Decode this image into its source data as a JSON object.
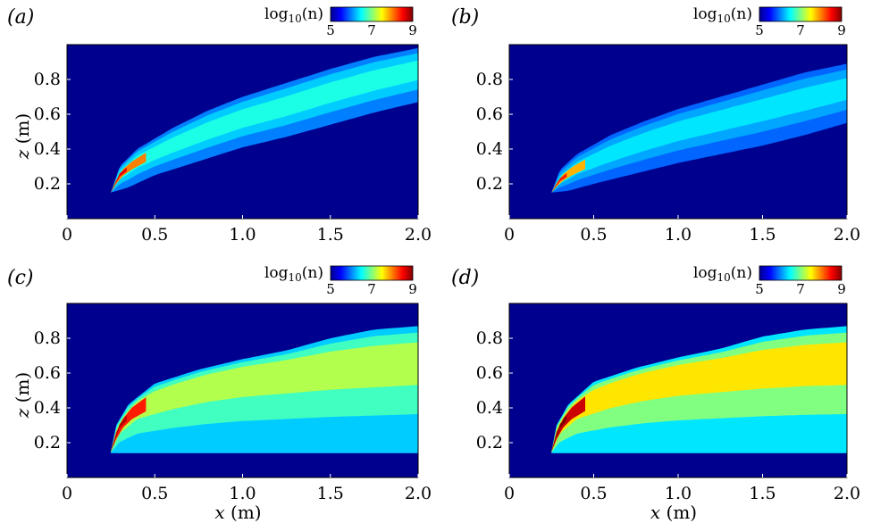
{
  "colors": {
    "background": "#00008f",
    "colormap": [
      "#00008f",
      "#0000ff",
      "#0080ff",
      "#00ffff",
      "#80ff80",
      "#ffff00",
      "#ff8000",
      "#ff0000",
      "#800000"
    ]
  },
  "chart_data": [
    {
      "type": "heatmap",
      "panel_label": "(a)",
      "xlabel": "",
      "ylabel": "z (m)",
      "xlim": [
        0,
        2.0
      ],
      "ylim": [
        0,
        1.0
      ],
      "x_ticks": [
        0,
        0.5,
        1.0,
        1.5,
        2.0
      ],
      "x_tick_labels": [
        "0",
        "0.5",
        "1.0",
        "1.5",
        "2.0"
      ],
      "y_ticks": [
        0.2,
        0.4,
        0.6,
        0.8
      ],
      "y_tick_labels": [
        "0.2",
        "0.4",
        "0.6",
        "0.8"
      ],
      "colorbar": {
        "label": "log10(n)",
        "range": [
          5,
          9
        ],
        "tick_labels": [
          "5",
          "7",
          "9"
        ]
      },
      "plume": {
        "source": [
          0.25,
          0.15
        ],
        "upper_edge": [
          [
            0.25,
            0.15
          ],
          [
            0.3,
            0.3
          ],
          [
            0.4,
            0.4
          ],
          [
            0.6,
            0.52
          ],
          [
            0.8,
            0.62
          ],
          [
            1.0,
            0.7
          ],
          [
            1.25,
            0.78
          ],
          [
            1.5,
            0.86
          ],
          [
            1.75,
            0.93
          ],
          [
            2.0,
            0.98
          ]
        ],
        "core": [
          [
            0.25,
            0.15
          ],
          [
            0.3,
            0.25
          ],
          [
            0.4,
            0.33
          ],
          [
            0.6,
            0.42
          ],
          [
            0.8,
            0.5
          ],
          [
            1.0,
            0.57
          ],
          [
            1.25,
            0.64
          ],
          [
            1.5,
            0.72
          ],
          [
            1.75,
            0.79
          ],
          [
            2.0,
            0.85
          ]
        ],
        "lower_edge": [
          [
            0.25,
            0.15
          ],
          [
            0.35,
            0.18
          ],
          [
            0.5,
            0.25
          ],
          [
            0.75,
            0.33
          ],
          [
            1.0,
            0.41
          ],
          [
            1.25,
            0.47
          ],
          [
            1.5,
            0.54
          ],
          [
            1.75,
            0.61
          ],
          [
            2.0,
            0.67
          ]
        ],
        "peak_log10n": 8.6,
        "body_log10n": 6.6,
        "outer_log10n": 6.0
      }
    },
    {
      "type": "heatmap",
      "panel_label": "(b)",
      "xlabel": "",
      "ylabel": "",
      "xlim": [
        0,
        2.0
      ],
      "ylim": [
        0,
        1.0
      ],
      "x_ticks": [
        0,
        0.5,
        1.0,
        1.5,
        2.0
      ],
      "x_tick_labels": [
        "0",
        "0.5",
        "1.0",
        "1.5",
        "2.0"
      ],
      "y_ticks": [
        0.2,
        0.4,
        0.6,
        0.8
      ],
      "y_tick_labels": [
        "0.2",
        "0.4",
        "0.6",
        "0.8"
      ],
      "colorbar": {
        "label": "log10(n)",
        "range": [
          5,
          9
        ],
        "tick_labels": [
          "5",
          "7",
          "9"
        ]
      },
      "plume": {
        "source": [
          0.25,
          0.15
        ],
        "upper_edge": [
          [
            0.25,
            0.15
          ],
          [
            0.3,
            0.28
          ],
          [
            0.4,
            0.37
          ],
          [
            0.6,
            0.48
          ],
          [
            0.8,
            0.56
          ],
          [
            1.0,
            0.63
          ],
          [
            1.25,
            0.7
          ],
          [
            1.5,
            0.77
          ],
          [
            1.75,
            0.84
          ],
          [
            2.0,
            0.89
          ]
        ],
        "core": [
          [
            0.25,
            0.15
          ],
          [
            0.3,
            0.22
          ],
          [
            0.4,
            0.29
          ],
          [
            0.6,
            0.37
          ],
          [
            0.8,
            0.44
          ],
          [
            1.0,
            0.5
          ],
          [
            1.25,
            0.56
          ],
          [
            1.5,
            0.62
          ],
          [
            1.75,
            0.68
          ],
          [
            2.0,
            0.74
          ]
        ],
        "lower_edge": [
          [
            0.25,
            0.15
          ],
          [
            0.35,
            0.16
          ],
          [
            0.5,
            0.2
          ],
          [
            0.75,
            0.26
          ],
          [
            1.0,
            0.32
          ],
          [
            1.25,
            0.37
          ],
          [
            1.5,
            0.42
          ],
          [
            1.75,
            0.48
          ],
          [
            2.0,
            0.55
          ]
        ],
        "peak_log10n": 8.4,
        "body_log10n": 6.4,
        "outer_log10n": 5.9
      }
    },
    {
      "type": "heatmap",
      "panel_label": "(c)",
      "xlabel": "x (m)",
      "ylabel": "z (m)",
      "xlim": [
        0,
        2.0
      ],
      "ylim": [
        0,
        1.0
      ],
      "x_ticks": [
        0,
        0.5,
        1.0,
        1.5,
        2.0
      ],
      "x_tick_labels": [
        "0",
        "0.5",
        "1.0",
        "1.5",
        "2.0"
      ],
      "y_ticks": [
        0.2,
        0.4,
        0.6,
        0.8
      ],
      "y_tick_labels": [
        "0.2",
        "0.4",
        "0.6",
        "0.8"
      ],
      "colorbar": {
        "label": "log10(n)",
        "range": [
          5,
          9
        ],
        "tick_labels": [
          "5",
          "7",
          "9"
        ]
      },
      "plume": {
        "source": [
          0.25,
          0.15
        ],
        "upper_edge": [
          [
            0.25,
            0.15
          ],
          [
            0.28,
            0.3
          ],
          [
            0.35,
            0.42
          ],
          [
            0.5,
            0.54
          ],
          [
            0.75,
            0.62
          ],
          [
            1.0,
            0.68
          ],
          [
            1.25,
            0.73
          ],
          [
            1.5,
            0.8
          ],
          [
            1.75,
            0.85
          ],
          [
            2.0,
            0.87
          ]
        ],
        "core": [
          [
            0.25,
            0.15
          ],
          [
            0.3,
            0.3
          ],
          [
            0.4,
            0.42
          ],
          [
            0.6,
            0.5
          ],
          [
            0.8,
            0.56
          ],
          [
            1.0,
            0.6
          ],
          [
            1.25,
            0.63
          ],
          [
            1.5,
            0.66
          ],
          [
            1.75,
            0.68
          ],
          [
            2.0,
            0.7
          ]
        ],
        "lower_edge": [
          [
            0.25,
            0.14
          ],
          [
            0.5,
            0.14
          ],
          [
            1.0,
            0.14
          ],
          [
            1.5,
            0.14
          ],
          [
            2.0,
            0.14
          ]
        ],
        "peak_log10n": 8.8,
        "body_log10n": 7.2,
        "outer_log10n": 6.3
      }
    },
    {
      "type": "heatmap",
      "panel_label": "(d)",
      "xlabel": "x (m)",
      "ylabel": "",
      "xlim": [
        0,
        2.0
      ],
      "ylim": [
        0,
        1.0
      ],
      "x_ticks": [
        0,
        0.5,
        1.0,
        1.5,
        2.0
      ],
      "x_tick_labels": [
        "0",
        "0.5",
        "1.0",
        "1.5",
        "2.0"
      ],
      "y_ticks": [
        0.2,
        0.4,
        0.6,
        0.8
      ],
      "y_tick_labels": [
        "0.2",
        "0.4",
        "0.6",
        "0.8"
      ],
      "colorbar": {
        "label": "log10(n)",
        "range": [
          5,
          9
        ],
        "tick_labels": [
          "5",
          "7",
          "9"
        ]
      },
      "plume": {
        "source": [
          0.25,
          0.15
        ],
        "upper_edge": [
          [
            0.25,
            0.15
          ],
          [
            0.28,
            0.3
          ],
          [
            0.35,
            0.42
          ],
          [
            0.5,
            0.55
          ],
          [
            0.75,
            0.63
          ],
          [
            1.0,
            0.69
          ],
          [
            1.25,
            0.74
          ],
          [
            1.5,
            0.81
          ],
          [
            1.75,
            0.85
          ],
          [
            2.0,
            0.87
          ]
        ],
        "core": [
          [
            0.25,
            0.15
          ],
          [
            0.3,
            0.3
          ],
          [
            0.4,
            0.42
          ],
          [
            0.6,
            0.51
          ],
          [
            0.8,
            0.57
          ],
          [
            1.0,
            0.61
          ],
          [
            1.25,
            0.64
          ],
          [
            1.5,
            0.67
          ],
          [
            1.75,
            0.69
          ],
          [
            2.0,
            0.7
          ]
        ],
        "lower_edge": [
          [
            0.25,
            0.14
          ],
          [
            0.5,
            0.14
          ],
          [
            1.0,
            0.14
          ],
          [
            1.5,
            0.14
          ],
          [
            2.0,
            0.14
          ]
        ],
        "peak_log10n": 9.0,
        "body_log10n": 7.6,
        "outer_log10n": 6.4
      }
    }
  ]
}
